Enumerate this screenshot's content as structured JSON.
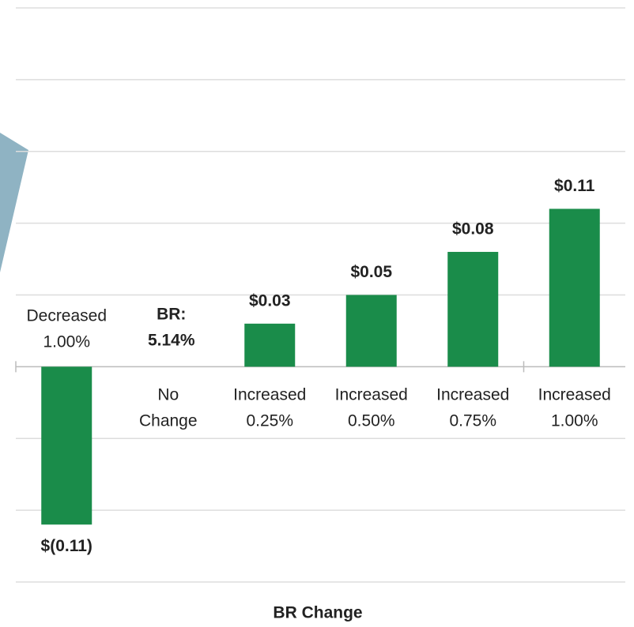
{
  "chart_data": {
    "type": "bar",
    "categories": [
      "Decreased 1.00%",
      "No Change",
      "Increased 0.25%",
      "Increased 0.50%",
      "Increased 0.75%",
      "Increased 1.00%"
    ],
    "values": [
      -0.11,
      0,
      0.03,
      0.05,
      0.08,
      0.11
    ],
    "value_labels": [
      "$(0.11)",
      null,
      "$0.03",
      "$0.05",
      "$0.08",
      "$0.11"
    ],
    "annotation": "BR: 5.14%",
    "x_label": "BR Change",
    "color": "#1a8c4a",
    "negative_label_color": "#e8141c",
    "annotation_color": "#1f5c3a",
    "ylim": [
      -0.15,
      0.25
    ],
    "yticks": [
      -0.15,
      -0.1,
      -0.05,
      0,
      0.05,
      0.1,
      0.15,
      0.2,
      0.25
    ],
    "grid": true
  }
}
